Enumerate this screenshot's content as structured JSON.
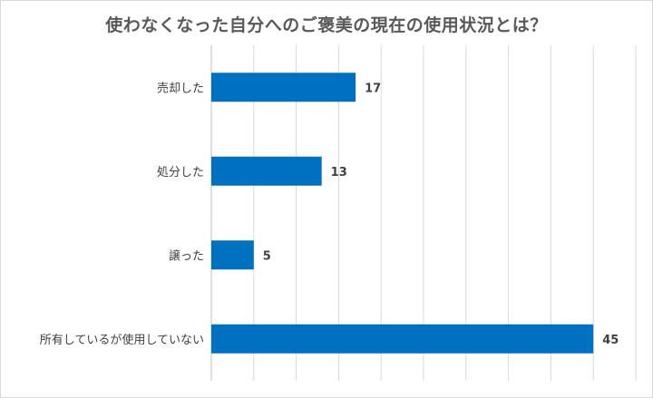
{
  "chart_data": {
    "type": "bar",
    "orientation": "horizontal",
    "title": "使わなくなった自分へのご褒美の現在の使用状況とは？",
    "categories": [
      "売却した",
      "処分した",
      "譲った",
      "所有しているが使用していない"
    ],
    "values": [
      17,
      13,
      5,
      45
    ],
    "xlim": [
      0,
      50
    ],
    "bar_color": "#0070C0",
    "grid": true,
    "data_labels": true
  }
}
